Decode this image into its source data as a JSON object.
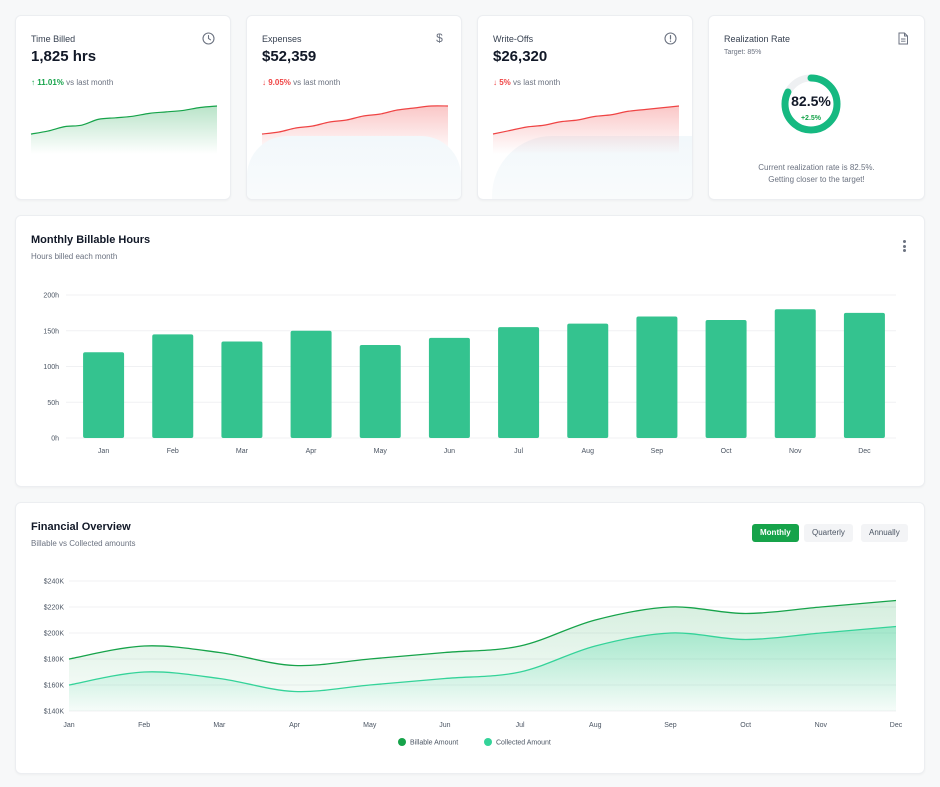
{
  "kpis": {
    "time_billed": {
      "title": "Time Billed",
      "value": "1,825 hrs",
      "delta": "↑ 11.01%",
      "delta_suffix": "vs last month",
      "icon": "clock-icon"
    },
    "expenses": {
      "title": "Expenses",
      "value": "$52,359",
      "delta": "↓ 9.05%",
      "delta_suffix": "vs last month",
      "icon": "dollar-icon"
    },
    "write_offs": {
      "title": "Write-Offs",
      "value": "$26,320",
      "delta": "↓ 5%",
      "delta_suffix": "vs last month",
      "icon": "alert-circle-icon"
    },
    "realization": {
      "title": "Realization Rate",
      "target": "Target: 85%",
      "value": "82.5%",
      "percent": 82.5,
      "delta": "+2.5%",
      "note_line1": "Current realization rate is 82.5%.",
      "note_line2": "Getting closer to the target!",
      "icon": "document-icon"
    }
  },
  "monthly_hours": {
    "title": "Monthly Billable Hours",
    "subtitle": "Hours billed each month",
    "chart_data": {
      "type": "bar",
      "categories": [
        "Jan",
        "Feb",
        "Mar",
        "Apr",
        "May",
        "Jun",
        "Jul",
        "Aug",
        "Sep",
        "Oct",
        "Nov",
        "Dec"
      ],
      "values": [
        120,
        145,
        135,
        150,
        130,
        140,
        155,
        160,
        170,
        165,
        180,
        175
      ],
      "ylim": [
        0,
        200
      ],
      "yticks": [
        0,
        50,
        100,
        150,
        200
      ],
      "ytick_suffix": "h",
      "color": "#34c38f",
      "grid": true
    }
  },
  "financial": {
    "title": "Financial Overview",
    "subtitle": "Billable vs Collected amounts",
    "toggles": [
      "Monthly",
      "Quarterly",
      "Annually"
    ],
    "active_toggle": "Monthly",
    "chart_data": {
      "type": "area",
      "categories": [
        "Jan",
        "Feb",
        "Mar",
        "Apr",
        "May",
        "Jun",
        "Jul",
        "Aug",
        "Sep",
        "Oct",
        "Nov",
        "Dec"
      ],
      "series": [
        {
          "name": "Billable Amount",
          "values": [
            180000,
            190000,
            185000,
            175000,
            180000,
            185000,
            190000,
            210000,
            220000,
            215000,
            220000,
            225000
          ],
          "color": "#16a34a"
        },
        {
          "name": "Collected Amount",
          "values": [
            160000,
            170000,
            165000,
            155000,
            160000,
            165000,
            170000,
            190000,
            200000,
            195000,
            200000,
            205000
          ],
          "color": "#34d399"
        }
      ],
      "ylim": [
        140000,
        240000
      ],
      "ytick_labels": [
        "$140K",
        "$160K",
        "$180K",
        "$200K",
        "$220K",
        "$240K"
      ],
      "legend": "bottom",
      "grid": true
    }
  },
  "sparklines": {
    "time_billed": {
      "values": [
        10,
        12,
        15,
        16,
        20,
        21,
        22,
        24,
        25,
        26,
        28,
        29
      ],
      "color": "#16a34a"
    },
    "expenses": {
      "values": [
        10,
        11,
        13,
        14,
        16,
        17,
        19,
        20,
        22,
        23,
        24,
        24
      ],
      "color": "#ef4444"
    },
    "write_offs": {
      "values": [
        10,
        12,
        14,
        15,
        17,
        18,
        20,
        21,
        23,
        24,
        25,
        26
      ],
      "color": "#ef4444"
    }
  }
}
